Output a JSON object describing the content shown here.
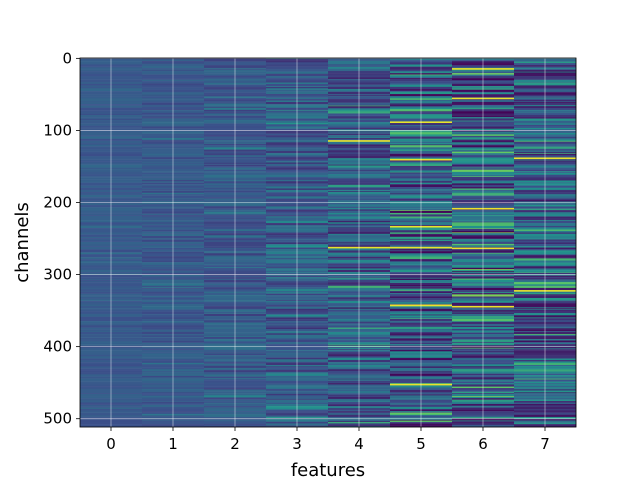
{
  "chart_data": {
    "type": "heatmap",
    "title": "",
    "xlabel": "features",
    "ylabel": "channels",
    "x_ticks": [
      0,
      1,
      2,
      3,
      4,
      5,
      6,
      7
    ],
    "y_ticks": [
      0,
      100,
      200,
      300,
      400,
      500
    ],
    "xlim": [
      -0.5,
      7.5
    ],
    "ylim": [
      511.5,
      -0.5
    ],
    "n_rows": 512,
    "n_cols": 8,
    "colormap": "viridis",
    "grid": true,
    "column_spread": [
      0.02,
      0.03,
      0.04,
      0.06,
      0.09,
      0.12,
      0.13,
      0.11
    ],
    "notable_rows": [
      {
        "col": 6,
        "row": 14
      },
      {
        "col": 6,
        "row": 55
      },
      {
        "col": 5,
        "row": 88
      },
      {
        "col": 4,
        "row": 114
      },
      {
        "col": 5,
        "row": 140
      },
      {
        "col": 7,
        "row": 138
      },
      {
        "col": 6,
        "row": 208
      },
      {
        "col": 5,
        "row": 233
      },
      {
        "col": 4,
        "row": 262
      },
      {
        "col": 5,
        "row": 262
      },
      {
        "col": 6,
        "row": 263
      },
      {
        "col": 7,
        "row": 322
      },
      {
        "col": 5,
        "row": 342
      },
      {
        "col": 6,
        "row": 344
      },
      {
        "col": 5,
        "row": 452
      }
    ]
  }
}
